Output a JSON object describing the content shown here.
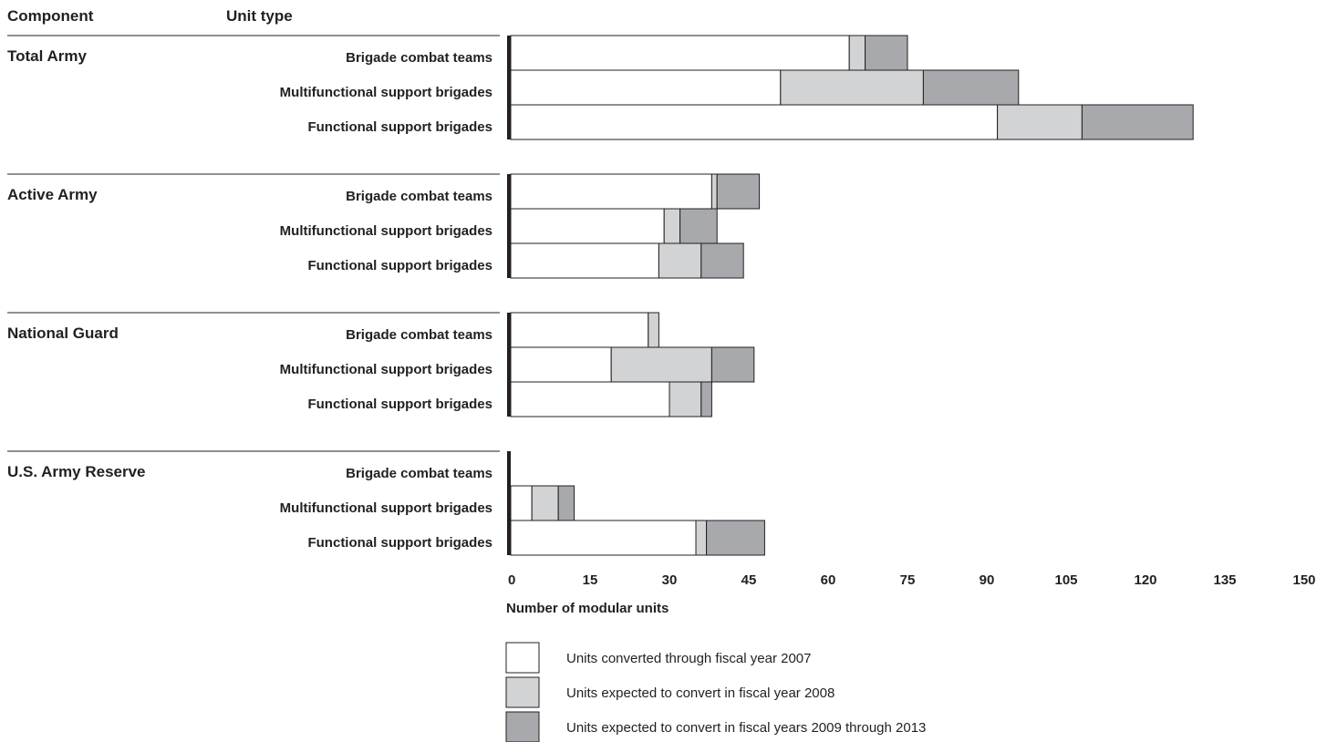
{
  "header": {
    "component": "Component",
    "unit_type": "Unit type"
  },
  "chart_data": {
    "type": "bar",
    "orientation": "horizontal",
    "stacked": true,
    "xlabel": "Number of modular units",
    "xlim": [
      0,
      150
    ],
    "xticks": [
      0,
      15,
      30,
      45,
      60,
      75,
      90,
      105,
      120,
      135,
      150
    ],
    "grid": false,
    "legend_position": "bottom",
    "series": [
      {
        "name": "Units converted through fiscal year  2007",
        "color": "#ffffff"
      },
      {
        "name": "Units expected to convert in fiscal year  2008",
        "color": "#d1d3d4"
      },
      {
        "name": "Units expected to convert in fiscal years 2009 through 2013",
        "color": "#a7a9ac"
      }
    ],
    "groups": [
      {
        "component": "Total Army",
        "bars": [
          {
            "unit_type": "Brigade combat teams",
            "values": [
              64,
              3,
              8
            ]
          },
          {
            "unit_type": "Multifunctional support brigades",
            "values": [
              51,
              27,
              18
            ]
          },
          {
            "unit_type": "Functional support brigades",
            "values": [
              92,
              16,
              21
            ]
          }
        ]
      },
      {
        "component": "Active Army",
        "bars": [
          {
            "unit_type": "Brigade combat teams",
            "values": [
              38,
              1,
              8
            ]
          },
          {
            "unit_type": "Multifunctional support brigades",
            "values": [
              29,
              3,
              7
            ]
          },
          {
            "unit_type": "Functional support brigades",
            "values": [
              28,
              8,
              8
            ]
          }
        ]
      },
      {
        "component": "National Guard",
        "bars": [
          {
            "unit_type": "Brigade combat teams",
            "values": [
              26,
              2,
              0
            ]
          },
          {
            "unit_type": "Multifunctional support brigades",
            "values": [
              19,
              19,
              8
            ]
          },
          {
            "unit_type": "Functional support brigades",
            "values": [
              30,
              6,
              2
            ]
          }
        ]
      },
      {
        "component": "U.S. Army Reserve",
        "bars": [
          {
            "unit_type": "Brigade combat teams",
            "values": [
              0,
              0,
              0
            ]
          },
          {
            "unit_type": "Multifunctional support brigades",
            "values": [
              4,
              5,
              3
            ]
          },
          {
            "unit_type": "Functional support brigades",
            "values": [
              35,
              2,
              11
            ]
          }
        ]
      }
    ]
  }
}
